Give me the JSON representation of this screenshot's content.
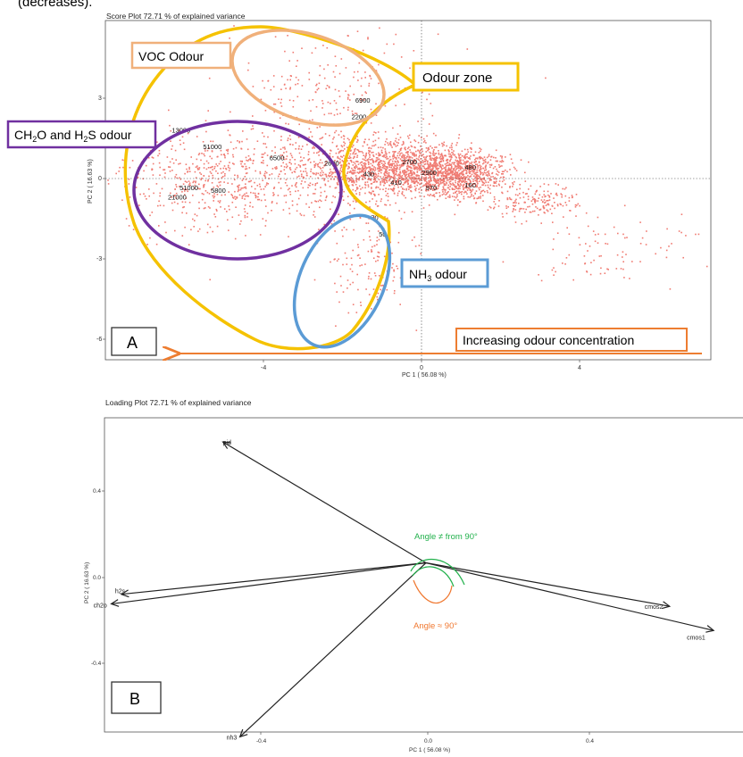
{
  "top_text": "(decreases).",
  "panel_a": {
    "title": "Score Plot  72.71 % of explained variance",
    "xlabel": "PC 1  ( 56.08 %)",
    "ylabel": "PC 2  ( 16.63 %)",
    "xticks": [
      "-4",
      "0",
      "4"
    ],
    "yticks": [
      "3",
      "0",
      "-3",
      "-6"
    ],
    "panel_label": "A",
    "annotations": {
      "voc": "VOC Odour",
      "odour_zone": "Odour zone",
      "nh3_prefix": "NH",
      "nh3_sub": "3",
      "nh3_suffix": " odour",
      "ch2o_1": "CH",
      "ch2o_2": "2",
      "ch2o_3": "O and H",
      "ch2o_4": "2",
      "ch2o_5": "S odour",
      "increasing": "Increasing odour concentration"
    },
    "point_labels": [
      {
        "text": "6900",
        "x": -1.1,
        "y": 2.8
      },
      {
        "text": "2200",
        "x": -1.2,
        "y": 2.2
      },
      {
        "text": "13000",
        "x": -5.8,
        "y": 1.7
      },
      {
        "text": "51000",
        "x": -5.0,
        "y": 1.1
      },
      {
        "text": "6500",
        "x": -3.3,
        "y": 0.7
      },
      {
        "text": "2600",
        "x": -1.9,
        "y": 0.5
      },
      {
        "text": "2700",
        "x": 0.1,
        "y": 0.55
      },
      {
        "text": "480",
        "x": 1.7,
        "y": 0.35
      },
      {
        "text": "430",
        "x": -0.9,
        "y": 0.1
      },
      {
        "text": "2900",
        "x": 0.6,
        "y": 0.15
      },
      {
        "text": "410",
        "x": -0.2,
        "y": -0.2
      },
      {
        "text": "160",
        "x": 1.7,
        "y": -0.3
      },
      {
        "text": "51000",
        "x": -5.6,
        "y": -0.4
      },
      {
        "text": "5800",
        "x": -4.8,
        "y": -0.5
      },
      {
        "text": "21000",
        "x": -5.9,
        "y": -0.75
      },
      {
        "text": "970",
        "x": 0.7,
        "y": -0.4
      },
      {
        "text": "50",
        "x": -0.5,
        "y": -2.1
      },
      {
        "text": "70",
        "x": -0.7,
        "y": -1.5
      }
    ]
  },
  "panel_b": {
    "title": "Loading Plot  72.71 % of explained variance",
    "xlabel": "PC 1  ( 56.08 %)",
    "ylabel": "PC 2  ( 16.63 %)",
    "xticks": [
      "-0.4",
      "0.0",
      "0.4"
    ],
    "yticks": [
      "0.4",
      "0.0",
      "-0.4"
    ],
    "panel_label": "B",
    "angle_green": "Angle ≠ from 90°",
    "angle_orange": "Angle ≈ 90°"
  },
  "chart_data": [
    {
      "type": "scatter",
      "title": "Score Plot  72.71 % of explained variance",
      "xlabel": "PC 1  ( 56.08 %)",
      "ylabel": "PC 2  ( 16.63 %)",
      "xlim": [
        -7.5,
        8.0
      ],
      "ylim": [
        -6.6,
        5.8
      ],
      "grid": false,
      "clusters": [
        {
          "cx": -1.7,
          "cy": 3.3,
          "sx": 1.4,
          "sy": 1.1,
          "n": 230
        },
        {
          "cx": -4.5,
          "cy": 0.0,
          "sx": 1.5,
          "sy": 0.9,
          "n": 650
        },
        {
          "cx": 0.3,
          "cy": 0.4,
          "sx": 1.0,
          "sy": 0.45,
          "n": 1300
        },
        {
          "cx": 1.5,
          "cy": 0.1,
          "sx": 0.6,
          "sy": 0.45,
          "n": 650
        },
        {
          "cx": -1.3,
          "cy": 0.5,
          "sx": 0.9,
          "sy": 0.7,
          "n": 450
        },
        {
          "cx": -0.8,
          "cy": -2.8,
          "sx": 0.6,
          "sy": 1.1,
          "n": 160
        },
        {
          "cx": 3.5,
          "cy": -0.8,
          "sx": 0.5,
          "sy": 0.3,
          "n": 170
        },
        {
          "cx": 5.5,
          "cy": -2.5,
          "sx": 1.2,
          "sy": 0.6,
          "n": 90
        }
      ],
      "reference_lines": {
        "x": 0,
        "y": 0
      }
    },
    {
      "type": "biplot",
      "title": "Loading Plot  72.71 % of explained variance",
      "xlabel": "PC 1  ( 56.08 %)",
      "ylabel": "PC 2  ( 16.63 %)",
      "xlim": [
        -0.95,
        0.95
      ],
      "ylim": [
        -0.7,
        0.6
      ],
      "origin": [
        0,
        0
      ],
      "vectors": [
        {
          "name": "pid",
          "x": -0.6,
          "y": 0.5
        },
        {
          "name": "h2s",
          "x": -0.9,
          "y": -0.13
        },
        {
          "name": "ch2o",
          "x": -0.93,
          "y": -0.17
        },
        {
          "name": "nh3",
          "x": -0.55,
          "y": -0.72
        },
        {
          "name": "cmos2",
          "x": 0.72,
          "y": -0.18
        },
        {
          "name": "cmos1",
          "x": 0.85,
          "y": -0.28
        }
      ]
    }
  ],
  "colors": {
    "points": "#f07b72",
    "odour_zone": "#f5c200",
    "voc": "#f0b07a",
    "ch2o": "#7030a0",
    "nh3": "#5b9bd5",
    "increasing": "#ed7d31",
    "angle_green": "#22b14c",
    "angle_orange": "#f07830"
  }
}
